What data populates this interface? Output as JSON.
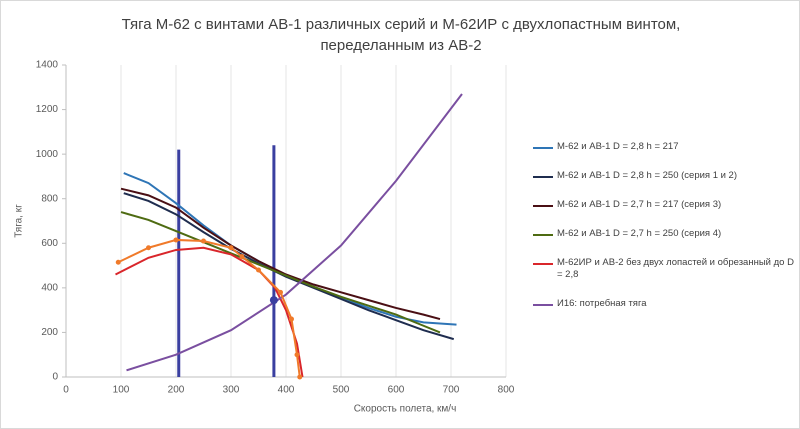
{
  "chart_data": {
    "type": "line",
    "title": [
      "Тяга М-62 с винтами АВ-1 различных серий и М-62ИР с двухлопастным винтом,",
      "переделанным из АВ-2"
    ],
    "xlabel": "Скорость полета, км/ч",
    "ylabel": "Тяга, кг",
    "xlim": [
      0,
      800
    ],
    "xticks": [
      0,
      100,
      200,
      300,
      400,
      500,
      600,
      700,
      800
    ],
    "ylim": [
      0,
      1400
    ],
    "yticks": [
      0,
      200,
      400,
      600,
      800,
      1000,
      1200,
      1400
    ],
    "grid": true,
    "series": [
      {
        "name": "М-62 и АВ-1 D = 2,8 h = 217",
        "color": "#2e75b6",
        "x": [
          105,
          150,
          200,
          250,
          300,
          350,
          400,
          450,
          500,
          550,
          600,
          650,
          710
        ],
        "values": [
          915,
          870,
          780,
          680,
          590,
          520,
          455,
          405,
          355,
          310,
          270,
          245,
          235
        ]
      },
      {
        "name": "М-62 и АВ-1 D = 2,8 h = 250 (серия 1 и 2)",
        "color": "#1f2d4f",
        "x": [
          105,
          150,
          200,
          250,
          300,
          350,
          400,
          450,
          500,
          550,
          600,
          650,
          705
        ],
        "values": [
          825,
          790,
          730,
          650,
          575,
          510,
          450,
          400,
          350,
          300,
          255,
          210,
          170
        ]
      },
      {
        "name": "М-62 и АВ-1 D = 2,7 h = 217 (серия 3)",
        "color": "#4a0f14",
        "x": [
          100,
          150,
          200,
          250,
          300,
          350,
          400,
          450,
          500,
          550,
          600,
          650,
          680
        ],
        "values": [
          845,
          815,
          760,
          670,
          590,
          520,
          460,
          415,
          380,
          345,
          310,
          280,
          260
        ]
      },
      {
        "name": "М-62 и АВ-1 D = 2,7 h = 250 (серия 4)",
        "color": "#4e6b12",
        "x": [
          100,
          150,
          200,
          250,
          300,
          350,
          400,
          450,
          500,
          550,
          600,
          650,
          680
        ],
        "values": [
          740,
          705,
          655,
          605,
          555,
          505,
          455,
          405,
          360,
          320,
          280,
          230,
          200
        ]
      },
      {
        "name": "М-62ИР и АВ-2 без двух лопастей и обрезанный до D = 2,8",
        "color": "#d9262b",
        "x": [
          90,
          150,
          200,
          250,
          300,
          350,
          380,
          400,
          420,
          430
        ],
        "values": [
          460,
          535,
          570,
          580,
          550,
          480,
          400,
          300,
          150,
          0
        ]
      },
      {
        "name": "И16: потребная тяга",
        "color": "#7a4fa0",
        "x": [
          110,
          200,
          300,
          400,
          500,
          600,
          720
        ],
        "values": [
          30,
          100,
          210,
          370,
          590,
          880,
          1270
        ]
      },
      {
        "color": "#f07a2a",
        "markers": true,
        "x": [
          95,
          150,
          200,
          250,
          300,
          320,
          350,
          390,
          410,
          420,
          425
        ],
        "values": [
          515,
          580,
          615,
          610,
          580,
          540,
          480,
          380,
          260,
          100,
          0
        ]
      }
    ],
    "reference_lines": [
      {
        "color": "#3a3fa0",
        "x": [
          205,
          205
        ],
        "values": [
          0,
          1020
        ]
      },
      {
        "color": "#3a3fa0",
        "x": [
          378,
          378
        ],
        "values": [
          0,
          1040
        ]
      }
    ],
    "points": [
      {
        "color": "#3a3fa0",
        "x": 378,
        "y": 345
      }
    ]
  }
}
